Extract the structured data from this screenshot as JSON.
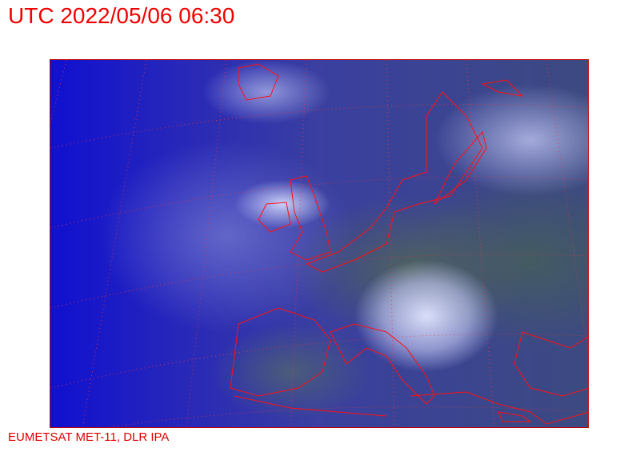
{
  "title": "UTC 2022/05/06 06:30",
  "credit": "EUMETSAT MET-11, DLR IPA",
  "colors": {
    "overlay": "#ff0000",
    "ocean": "#1a1ac0"
  },
  "map": {
    "type": "satellite-composite",
    "region": "Europe",
    "graticule": true,
    "coastlines": true
  }
}
